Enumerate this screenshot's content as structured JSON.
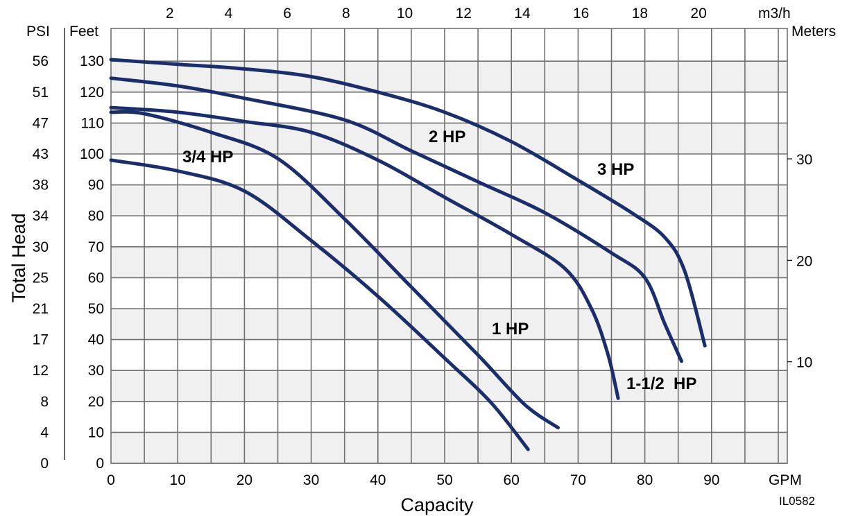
{
  "chart_data": {
    "type": "line",
    "xlabel": "Capacity",
    "ylabel": "Total Head",
    "x_unit": "GPM",
    "y_unit": "Feet",
    "psi_unit": "PSI",
    "top_unit": "m3/h",
    "right_unit": "Meters",
    "figure_code": "IL0582",
    "xlim": [
      0,
      100
    ],
    "ylim": [
      0,
      135
    ],
    "x_ticks": [
      0,
      10,
      20,
      30,
      40,
      50,
      60,
      70,
      80,
      90
    ],
    "y_ticks": [
      0,
      10,
      20,
      30,
      40,
      50,
      60,
      70,
      80,
      90,
      100,
      110,
      120,
      130
    ],
    "psi_ticks": [
      "0",
      "4",
      "8",
      "12",
      "17",
      "21",
      "25",
      "30",
      "34",
      "38",
      "43",
      "47",
      "51",
      "56"
    ],
    "top_ticks": [
      2,
      4,
      6,
      8,
      10,
      12,
      14,
      16,
      18,
      20
    ],
    "right_ticks": [
      10,
      20,
      30
    ],
    "grid": true,
    "series": [
      {
        "name": "3/4 HP",
        "points": [
          [
            0,
            98
          ],
          [
            10,
            94.5
          ],
          [
            20,
            88
          ],
          [
            30,
            72
          ],
          [
            40,
            54
          ],
          [
            50,
            34
          ],
          [
            57,
            19.5
          ],
          [
            62.5,
            4.5
          ]
        ]
      },
      {
        "name": "1 HP",
        "points": [
          [
            0,
            113.5
          ],
          [
            5,
            113
          ],
          [
            15,
            107
          ],
          [
            25,
            98.5
          ],
          [
            35,
            79
          ],
          [
            45,
            57
          ],
          [
            55,
            35
          ],
          [
            62,
            19
          ],
          [
            67,
            11.5
          ]
        ]
      },
      {
        "name": "1-1/2 HP",
        "points": [
          [
            0,
            115
          ],
          [
            10,
            113.5
          ],
          [
            20,
            110.5
          ],
          [
            30,
            107
          ],
          [
            40,
            98
          ],
          [
            50,
            86
          ],
          [
            60,
            74
          ],
          [
            68,
            63
          ],
          [
            72,
            50
          ],
          [
            74.5,
            35
          ],
          [
            76,
            21
          ]
        ]
      },
      {
        "name": "2 HP",
        "points": [
          [
            0,
            124.5
          ],
          [
            10,
            122
          ],
          [
            20,
            118
          ],
          [
            35,
            111
          ],
          [
            45,
            101
          ],
          [
            55,
            91
          ],
          [
            65,
            81
          ],
          [
            75,
            68
          ],
          [
            80,
            60
          ],
          [
            83,
            45
          ],
          [
            85.5,
            33
          ]
        ]
      },
      {
        "name": "3 HP",
        "points": [
          [
            0,
            130.5
          ],
          [
            10,
            129
          ],
          [
            20,
            127.5
          ],
          [
            30,
            125
          ],
          [
            40,
            120
          ],
          [
            50,
            113.5
          ],
          [
            60,
            104
          ],
          [
            70,
            91.5
          ],
          [
            78,
            81
          ],
          [
            83,
            73
          ],
          [
            86,
            62
          ],
          [
            89,
            38
          ]
        ]
      }
    ]
  },
  "labels": [
    {
      "text": "3/4 HP",
      "series": "3/4 HP"
    },
    {
      "text": "1 HP",
      "series": "1 HP"
    },
    {
      "text": "1-1/2  HP",
      "series": "1-1/2 HP"
    },
    {
      "text": "2 HP",
      "series": "2 HP"
    },
    {
      "text": "3 HP",
      "series": "3 HP"
    }
  ],
  "colors": {
    "curve": "#1a2e6b",
    "band": "#f0f0f0",
    "grid": "#707070",
    "text": "#000000"
  }
}
